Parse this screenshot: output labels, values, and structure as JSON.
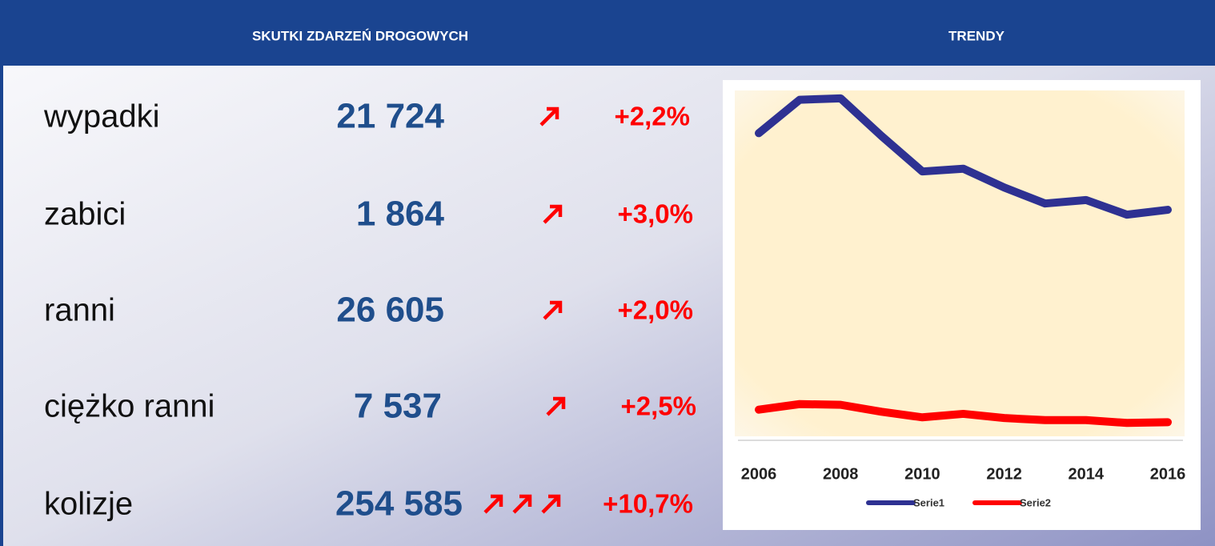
{
  "headers": [
    "SKUTKI ZDARZEŃ DROGOWYCH",
    "TRENDY"
  ],
  "table": {
    "rows": [
      {
        "label": "wypadki",
        "value": "21 724",
        "change": "+2,2%"
      },
      {
        "label": "zabici",
        "value": "1 864",
        "change": "+3,0%"
      },
      {
        "label": "ranni",
        "value": "26 605",
        "change": "+2,0%"
      },
      {
        "label": "ciężko ranni",
        "value": "7 537",
        "change": "+2,5%"
      },
      {
        "label": "kolizje",
        "value": "254 585",
        "change": "+10,7%"
      }
    ]
  },
  "chart_data": {
    "type": "line",
    "x": [
      2006,
      2007,
      2008,
      2009,
      2010,
      2011,
      2012,
      2013,
      2014,
      2015,
      2016
    ],
    "xlim": [
      2006,
      2016
    ],
    "xticks": [
      2006,
      2008,
      2010,
      2012,
      2014,
      2016
    ],
    "ylim": [
      0,
      50000
    ],
    "series": [
      {
        "name": "Serie1",
        "color": "#2e3192",
        "values": [
          44100,
          48900,
          49100,
          43700,
          38600,
          39000,
          36300,
          34000,
          34500,
          32400,
          33100
        ]
      },
      {
        "name": "Serie2",
        "color": "#ff0000",
        "values": [
          4400,
          5200,
          5100,
          4100,
          3300,
          3800,
          3200,
          2900,
          2900,
          2500,
          2600
        ]
      }
    ]
  }
}
